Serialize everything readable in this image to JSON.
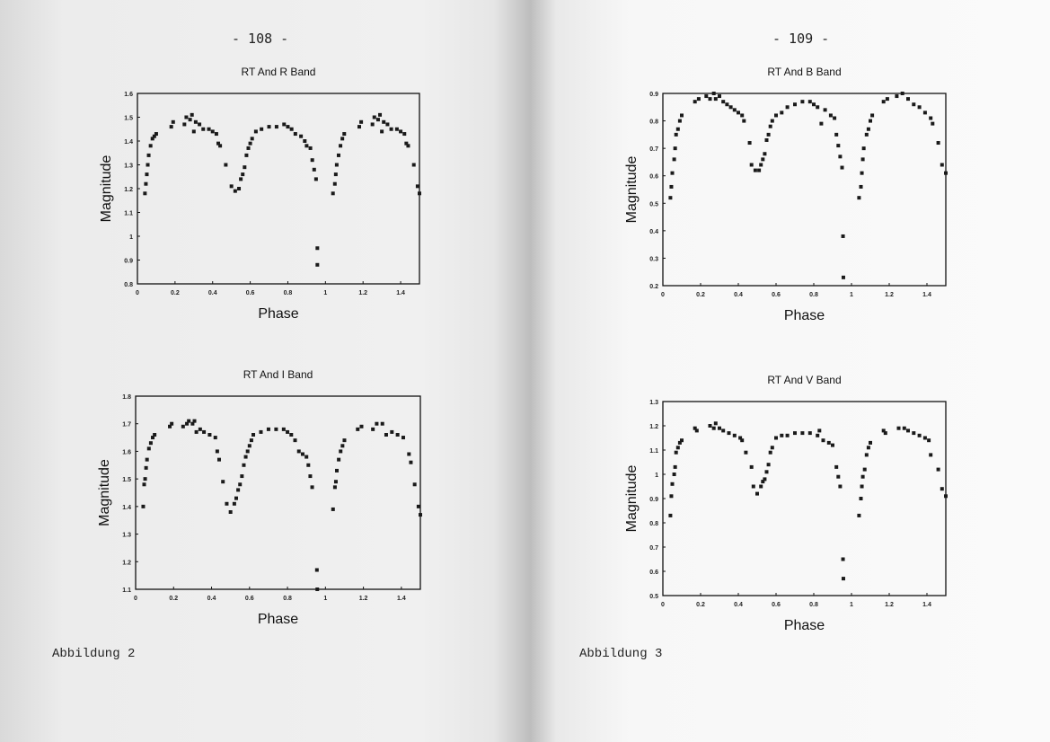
{
  "left_page": {
    "page_number": "- 108 -",
    "caption": "Abbildung 2"
  },
  "right_page": {
    "page_number": "- 109 -",
    "caption": "Abbildung 3"
  },
  "colors": {
    "marker": "#1a1a1a",
    "paper": "#f2f2f2"
  },
  "chart_data": [
    {
      "id": "r",
      "type": "scatter",
      "title": "RT And R Band",
      "xlabel": "Phase",
      "ylabel": "Magnitude",
      "xlim": [
        0,
        1.5
      ],
      "ylim": [
        0.8,
        1.6
      ],
      "xticks": [
        "0",
        "0.2",
        "0.4",
        "0.6",
        "0.8",
        "1",
        "1.2",
        "1.4"
      ],
      "yticks": [
        "0.8",
        "0.9",
        "1",
        "1.1",
        "1.2",
        "1.3",
        "1.4",
        "1.5",
        "1.6"
      ],
      "grid": false,
      "points": [
        [
          0.04,
          1.18
        ],
        [
          0.045,
          1.22
        ],
        [
          0.05,
          1.26
        ],
        [
          0.055,
          1.3
        ],
        [
          0.06,
          1.34
        ],
        [
          0.07,
          1.38
        ],
        [
          0.08,
          1.41
        ],
        [
          0.09,
          1.42
        ],
        [
          0.1,
          1.43
        ],
        [
          0.18,
          1.46
        ],
        [
          0.19,
          1.48
        ],
        [
          0.25,
          1.47
        ],
        [
          0.26,
          1.5
        ],
        [
          0.28,
          1.49
        ],
        [
          0.29,
          1.51
        ],
        [
          0.3,
          1.44
        ],
        [
          0.31,
          1.48
        ],
        [
          0.33,
          1.47
        ],
        [
          0.35,
          1.45
        ],
        [
          0.38,
          1.45
        ],
        [
          0.4,
          1.44
        ],
        [
          0.42,
          1.43
        ],
        [
          0.43,
          1.39
        ],
        [
          0.44,
          1.38
        ],
        [
          0.47,
          1.3
        ],
        [
          0.5,
          1.21
        ],
        [
          0.52,
          1.19
        ],
        [
          0.54,
          1.2
        ],
        [
          0.55,
          1.24
        ],
        [
          0.56,
          1.26
        ],
        [
          0.57,
          1.29
        ],
        [
          0.58,
          1.34
        ],
        [
          0.59,
          1.37
        ],
        [
          0.6,
          1.39
        ],
        [
          0.61,
          1.41
        ],
        [
          0.63,
          1.44
        ],
        [
          0.66,
          1.45
        ],
        [
          0.7,
          1.46
        ],
        [
          0.74,
          1.46
        ],
        [
          0.78,
          1.47
        ],
        [
          0.8,
          1.46
        ],
        [
          0.82,
          1.45
        ],
        [
          0.84,
          1.43
        ],
        [
          0.87,
          1.42
        ],
        [
          0.89,
          1.4
        ],
        [
          0.9,
          1.38
        ],
        [
          0.92,
          1.37
        ],
        [
          0.93,
          1.32
        ],
        [
          0.94,
          1.28
        ],
        [
          0.95,
          1.24
        ],
        [
          0.957,
          0.95
        ],
        [
          0.957,
          0.88
        ],
        [
          1.04,
          1.18
        ],
        [
          1.05,
          1.22
        ],
        [
          1.055,
          1.26
        ],
        [
          1.06,
          1.3
        ],
        [
          1.07,
          1.34
        ],
        [
          1.08,
          1.38
        ],
        [
          1.09,
          1.41
        ],
        [
          1.1,
          1.43
        ],
        [
          1.18,
          1.46
        ],
        [
          1.19,
          1.48
        ],
        [
          1.25,
          1.47
        ],
        [
          1.26,
          1.5
        ],
        [
          1.28,
          1.49
        ],
        [
          1.29,
          1.51
        ],
        [
          1.3,
          1.44
        ],
        [
          1.31,
          1.48
        ],
        [
          1.33,
          1.47
        ],
        [
          1.35,
          1.45
        ],
        [
          1.38,
          1.45
        ],
        [
          1.4,
          1.44
        ],
        [
          1.42,
          1.43
        ],
        [
          1.43,
          1.39
        ],
        [
          1.44,
          1.38
        ],
        [
          1.47,
          1.3
        ],
        [
          1.49,
          1.21
        ],
        [
          1.5,
          1.18
        ]
      ]
    },
    {
      "id": "i",
      "type": "scatter",
      "title": "RT And I Band",
      "xlabel": "Phase",
      "ylabel": "Magnitude",
      "xlim": [
        0,
        1.5
      ],
      "ylim": [
        1.1,
        1.8
      ],
      "xticks": [
        "0",
        "0.2",
        "0.4",
        "0.6",
        "0.8",
        "1",
        "1.2",
        "1.4"
      ],
      "yticks": [
        "1.1",
        "1.2",
        "1.3",
        "1.4",
        "1.5",
        "1.6",
        "1.7",
        "1.8"
      ],
      "grid": false,
      "points": [
        [
          0.04,
          1.4
        ],
        [
          0.045,
          1.48
        ],
        [
          0.05,
          1.5
        ],
        [
          0.055,
          1.54
        ],
        [
          0.06,
          1.57
        ],
        [
          0.07,
          1.61
        ],
        [
          0.08,
          1.63
        ],
        [
          0.09,
          1.65
        ],
        [
          0.1,
          1.66
        ],
        [
          0.18,
          1.69
        ],
        [
          0.19,
          1.7
        ],
        [
          0.25,
          1.69
        ],
        [
          0.27,
          1.7
        ],
        [
          0.28,
          1.71
        ],
        [
          0.3,
          1.7
        ],
        [
          0.31,
          1.71
        ],
        [
          0.32,
          1.67
        ],
        [
          0.34,
          1.68
        ],
        [
          0.36,
          1.67
        ],
        [
          0.39,
          1.66
        ],
        [
          0.42,
          1.65
        ],
        [
          0.43,
          1.6
        ],
        [
          0.44,
          1.57
        ],
        [
          0.46,
          1.49
        ],
        [
          0.48,
          1.41
        ],
        [
          0.5,
          1.38
        ],
        [
          0.52,
          1.41
        ],
        [
          0.53,
          1.43
        ],
        [
          0.54,
          1.46
        ],
        [
          0.55,
          1.48
        ],
        [
          0.56,
          1.51
        ],
        [
          0.57,
          1.55
        ],
        [
          0.58,
          1.58
        ],
        [
          0.59,
          1.6
        ],
        [
          0.6,
          1.62
        ],
        [
          0.61,
          1.64
        ],
        [
          0.62,
          1.66
        ],
        [
          0.66,
          1.67
        ],
        [
          0.7,
          1.68
        ],
        [
          0.74,
          1.68
        ],
        [
          0.78,
          1.68
        ],
        [
          0.8,
          1.67
        ],
        [
          0.82,
          1.66
        ],
        [
          0.84,
          1.64
        ],
        [
          0.86,
          1.6
        ],
        [
          0.88,
          1.59
        ],
        [
          0.9,
          1.58
        ],
        [
          0.91,
          1.55
        ],
        [
          0.92,
          1.51
        ],
        [
          0.93,
          1.47
        ],
        [
          0.955,
          1.17
        ],
        [
          0.957,
          1.1
        ],
        [
          1.04,
          1.39
        ],
        [
          1.05,
          1.47
        ],
        [
          1.055,
          1.49
        ],
        [
          1.06,
          1.53
        ],
        [
          1.07,
          1.57
        ],
        [
          1.08,
          1.6
        ],
        [
          1.09,
          1.62
        ],
        [
          1.1,
          1.64
        ],
        [
          1.17,
          1.68
        ],
        [
          1.19,
          1.69
        ],
        [
          1.25,
          1.68
        ],
        [
          1.27,
          1.7
        ],
        [
          1.3,
          1.7
        ],
        [
          1.32,
          1.66
        ],
        [
          1.35,
          1.67
        ],
        [
          1.38,
          1.66
        ],
        [
          1.41,
          1.65
        ],
        [
          1.44,
          1.59
        ],
        [
          1.45,
          1.56
        ],
        [
          1.47,
          1.48
        ],
        [
          1.49,
          1.4
        ],
        [
          1.5,
          1.37
        ]
      ]
    },
    {
      "id": "b",
      "type": "scatter",
      "title": "RT And B Band",
      "xlabel": "Phase",
      "ylabel": "Magnitude",
      "xlim": [
        0,
        1.5
      ],
      "ylim": [
        0.2,
        0.9
      ],
      "xticks": [
        "0",
        "0.2",
        "0.4",
        "0.6",
        "0.8",
        "1",
        "1.2",
        "1.4"
      ],
      "yticks": [
        "0.2",
        "0.3",
        "0.4",
        "0.5",
        "0.6",
        "0.7",
        "0.8",
        "0.9"
      ],
      "grid": false,
      "points": [
        [
          0.04,
          0.52
        ],
        [
          0.045,
          0.56
        ],
        [
          0.05,
          0.61
        ],
        [
          0.06,
          0.66
        ],
        [
          0.065,
          0.7
        ],
        [
          0.07,
          0.75
        ],
        [
          0.08,
          0.77
        ],
        [
          0.09,
          0.8
        ],
        [
          0.1,
          0.82
        ],
        [
          0.17,
          0.87
        ],
        [
          0.19,
          0.88
        ],
        [
          0.23,
          0.89
        ],
        [
          0.25,
          0.88
        ],
        [
          0.27,
          0.9
        ],
        [
          0.28,
          0.88
        ],
        [
          0.3,
          0.89
        ],
        [
          0.32,
          0.87
        ],
        [
          0.34,
          0.86
        ],
        [
          0.36,
          0.85
        ],
        [
          0.38,
          0.84
        ],
        [
          0.4,
          0.83
        ],
        [
          0.42,
          0.82
        ],
        [
          0.43,
          0.8
        ],
        [
          0.46,
          0.72
        ],
        [
          0.47,
          0.64
        ],
        [
          0.49,
          0.62
        ],
        [
          0.51,
          0.62
        ],
        [
          0.52,
          0.64
        ],
        [
          0.53,
          0.66
        ],
        [
          0.54,
          0.68
        ],
        [
          0.55,
          0.73
        ],
        [
          0.56,
          0.75
        ],
        [
          0.57,
          0.78
        ],
        [
          0.58,
          0.8
        ],
        [
          0.6,
          0.82
        ],
        [
          0.63,
          0.83
        ],
        [
          0.66,
          0.85
        ],
        [
          0.7,
          0.86
        ],
        [
          0.74,
          0.87
        ],
        [
          0.78,
          0.87
        ],
        [
          0.8,
          0.86
        ],
        [
          0.82,
          0.85
        ],
        [
          0.84,
          0.79
        ],
        [
          0.86,
          0.84
        ],
        [
          0.89,
          0.82
        ],
        [
          0.91,
          0.81
        ],
        [
          0.92,
          0.75
        ],
        [
          0.93,
          0.71
        ],
        [
          0.94,
          0.67
        ],
        [
          0.95,
          0.63
        ],
        [
          0.955,
          0.38
        ],
        [
          0.957,
          0.23
        ],
        [
          1.04,
          0.52
        ],
        [
          1.05,
          0.56
        ],
        [
          1.055,
          0.61
        ],
        [
          1.06,
          0.66
        ],
        [
          1.065,
          0.7
        ],
        [
          1.08,
          0.75
        ],
        [
          1.09,
          0.77
        ],
        [
          1.1,
          0.8
        ],
        [
          1.11,
          0.82
        ],
        [
          1.17,
          0.87
        ],
        [
          1.19,
          0.88
        ],
        [
          1.24,
          0.89
        ],
        [
          1.27,
          0.9
        ],
        [
          1.3,
          0.88
        ],
        [
          1.33,
          0.86
        ],
        [
          1.36,
          0.85
        ],
        [
          1.39,
          0.83
        ],
        [
          1.42,
          0.81
        ],
        [
          1.43,
          0.79
        ],
        [
          1.46,
          0.72
        ],
        [
          1.48,
          0.64
        ],
        [
          1.5,
          0.61
        ]
      ]
    },
    {
      "id": "v",
      "type": "scatter",
      "title": "RT And V Band",
      "xlabel": "Phase",
      "ylabel": "Magnitude",
      "xlim": [
        0,
        1.5
      ],
      "ylim": [
        0.5,
        1.3
      ],
      "xticks": [
        "0",
        "0.2",
        "0.4",
        "0.6",
        "0.8",
        "1",
        "1.2",
        "1.4"
      ],
      "yticks": [
        "0.5",
        "0.6",
        "0.7",
        "0.8",
        "0.9",
        "1",
        "1.1",
        "1.2",
        "1.3"
      ],
      "grid": false,
      "points": [
        [
          0.04,
          0.83
        ],
        [
          0.045,
          0.91
        ],
        [
          0.05,
          0.96
        ],
        [
          0.06,
          1.0
        ],
        [
          0.065,
          1.03
        ],
        [
          0.07,
          1.09
        ],
        [
          0.08,
          1.11
        ],
        [
          0.09,
          1.13
        ],
        [
          0.1,
          1.14
        ],
        [
          0.17,
          1.19
        ],
        [
          0.18,
          1.18
        ],
        [
          0.25,
          1.2
        ],
        [
          0.27,
          1.19
        ],
        [
          0.28,
          1.21
        ],
        [
          0.3,
          1.19
        ],
        [
          0.32,
          1.18
        ],
        [
          0.35,
          1.17
        ],
        [
          0.38,
          1.16
        ],
        [
          0.41,
          1.15
        ],
        [
          0.42,
          1.14
        ],
        [
          0.44,
          1.09
        ],
        [
          0.47,
          1.03
        ],
        [
          0.48,
          0.95
        ],
        [
          0.5,
          0.92
        ],
        [
          0.52,
          0.95
        ],
        [
          0.53,
          0.97
        ],
        [
          0.54,
          0.98
        ],
        [
          0.55,
          1.01
        ],
        [
          0.56,
          1.04
        ],
        [
          0.57,
          1.09
        ],
        [
          0.58,
          1.11
        ],
        [
          0.6,
          1.15
        ],
        [
          0.63,
          1.16
        ],
        [
          0.66,
          1.16
        ],
        [
          0.7,
          1.17
        ],
        [
          0.74,
          1.17
        ],
        [
          0.78,
          1.17
        ],
        [
          0.82,
          1.16
        ],
        [
          0.83,
          1.18
        ],
        [
          0.85,
          1.14
        ],
        [
          0.88,
          1.13
        ],
        [
          0.9,
          1.12
        ],
        [
          0.92,
          1.03
        ],
        [
          0.93,
          0.99
        ],
        [
          0.94,
          0.95
        ],
        [
          0.955,
          0.65
        ],
        [
          0.957,
          0.57
        ],
        [
          1.04,
          0.83
        ],
        [
          1.05,
          0.9
        ],
        [
          1.055,
          0.95
        ],
        [
          1.06,
          0.99
        ],
        [
          1.07,
          1.02
        ],
        [
          1.08,
          1.08
        ],
        [
          1.09,
          1.11
        ],
        [
          1.1,
          1.13
        ],
        [
          1.17,
          1.18
        ],
        [
          1.18,
          1.17
        ],
        [
          1.25,
          1.19
        ],
        [
          1.28,
          1.19
        ],
        [
          1.3,
          1.18
        ],
        [
          1.33,
          1.17
        ],
        [
          1.36,
          1.16
        ],
        [
          1.39,
          1.15
        ],
        [
          1.41,
          1.14
        ],
        [
          1.42,
          1.08
        ],
        [
          1.46,
          1.02
        ],
        [
          1.48,
          0.94
        ],
        [
          1.5,
          0.91
        ]
      ]
    }
  ]
}
